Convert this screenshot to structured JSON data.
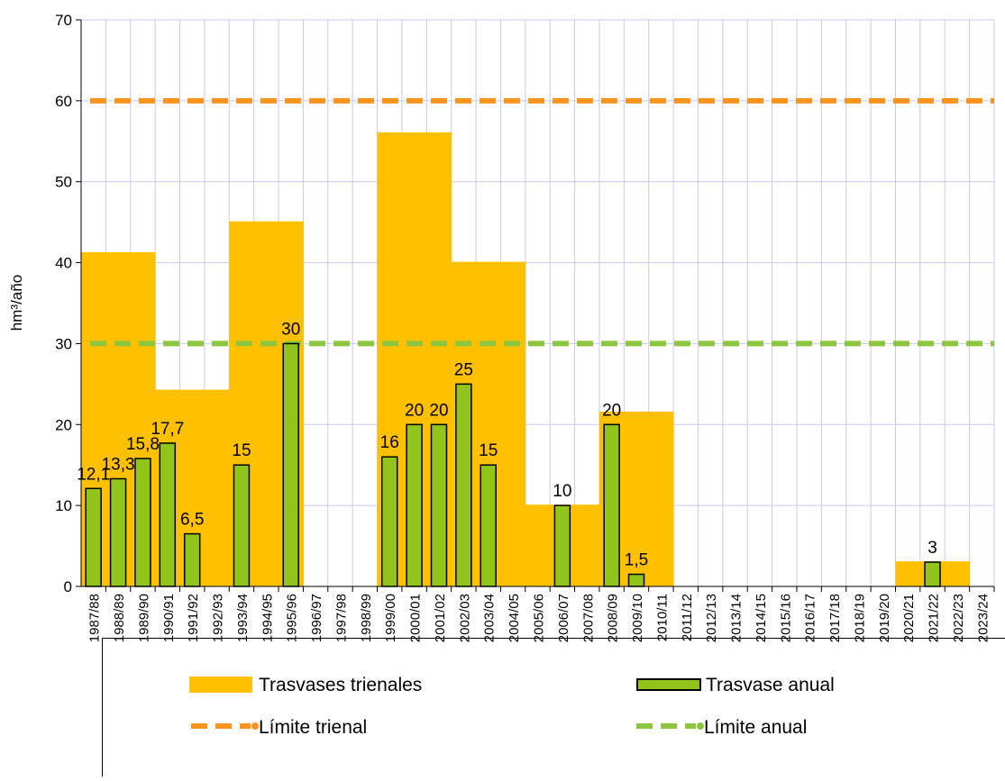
{
  "chart_data": {
    "type": "bar",
    "y_label": "hm³/año",
    "categories": [
      "1987/88",
      "1988/89",
      "1989/90",
      "1990/91",
      "1991/92",
      "1992/93",
      "1993/94",
      "1994/95",
      "1995/96",
      "1996/97",
      "1997/98",
      "1998/99",
      "1999/00",
      "2000/01",
      "2001/02",
      "2002/03",
      "2003/04",
      "2004/05",
      "2005/06",
      "2006/07",
      "2007/08",
      "2008/09",
      "2009/10",
      "2010/11",
      "2011/12",
      "2012/13",
      "2013/14",
      "2014/15",
      "2015/16",
      "2016/17",
      "2017/18",
      "2018/19",
      "2019/20",
      "2020/21",
      "2021/22",
      "2022/23",
      "2023/24"
    ],
    "series": [
      {
        "name": "Trasvases trienales",
        "color": "#ffc000",
        "values": [
          41.3,
          41.3,
          41.3,
          24.3,
          24.3,
          24.3,
          45.1,
          45.1,
          45.1,
          null,
          null,
          null,
          56.1,
          56.1,
          56.1,
          40.1,
          40.1,
          40.1,
          10.1,
          10.1,
          10.1,
          21.6,
          21.6,
          21.6,
          null,
          null,
          null,
          null,
          null,
          null,
          null,
          null,
          null,
          3.1,
          3.1,
          3.1,
          null
        ]
      },
      {
        "name": "Trasvase anual",
        "color": "#92c51b",
        "values": [
          12.1,
          13.3,
          15.8,
          17.7,
          6.5,
          null,
          15,
          null,
          30,
          null,
          null,
          null,
          16,
          20,
          20,
          25,
          15,
          null,
          null,
          10,
          null,
          20,
          1.5,
          null,
          null,
          null,
          null,
          null,
          null,
          null,
          null,
          null,
          null,
          null,
          3,
          null,
          null
        ],
        "value_labels": [
          "12,1",
          "13,3",
          "15,8",
          "17,7",
          "6,5",
          null,
          "15",
          null,
          "30",
          null,
          null,
          null,
          "16",
          "20",
          "20",
          "25",
          "15",
          null,
          null,
          "10",
          null,
          "20",
          "1,5",
          null,
          null,
          null,
          null,
          null,
          null,
          null,
          null,
          null,
          null,
          null,
          "3",
          null,
          null
        ]
      }
    ],
    "lines": [
      {
        "name": "Límite trienal",
        "color": "#f7941d",
        "value": 60
      },
      {
        "name": "Límite anual",
        "color": "#8cc63f",
        "value": 30
      }
    ],
    "ylim": [
      0,
      70
    ],
    "yticks": [
      0,
      10,
      20,
      30,
      40,
      50,
      60,
      70
    ],
    "grid": true
  }
}
